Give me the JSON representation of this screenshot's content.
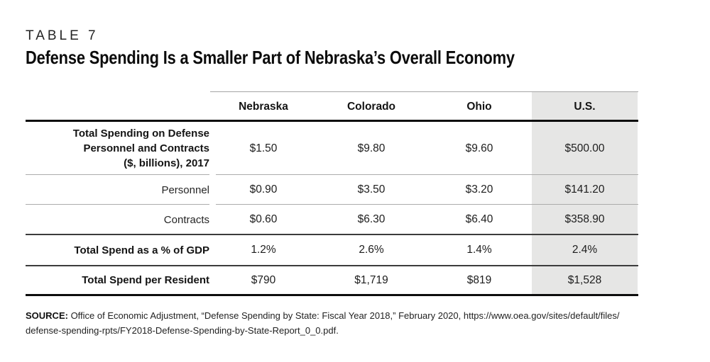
{
  "header": {
    "kicker": "TABLE 7",
    "title": "Defense Spending Is a Smaller Part of Nebraska’s Overall Economy"
  },
  "table": {
    "columns": [
      "Nebraska",
      "Colorado",
      "Ohio",
      "U.S."
    ],
    "highlighted_column": "U.S.",
    "highlight_color": "#e6e6e5",
    "rows": [
      {
        "label": "Total Spending on Defense Personnel and Contracts ($, billions), 2017",
        "label_lines": [
          "Total Spending on Defense",
          "Personnel and Contracts",
          "($, billions), 2017"
        ],
        "bold": true,
        "values": [
          "$1.50",
          "$9.80",
          "$9.60",
          "$500.00"
        ]
      },
      {
        "label": "Personnel",
        "bold": false,
        "values": [
          "$0.90",
          "$3.50",
          "$3.20",
          "$141.20"
        ]
      },
      {
        "label": "Contracts",
        "bold": false,
        "values": [
          "$0.60",
          "$6.30",
          "$6.40",
          "$358.90"
        ]
      },
      {
        "label": "Total Spend as a % of GDP",
        "bold": true,
        "values": [
          "1.2%",
          "2.6%",
          "1.4%",
          "2.4%"
        ]
      },
      {
        "label": "Total Spend per Resident",
        "bold": true,
        "values": [
          "$790",
          "$1,719",
          "$819",
          "$1,528"
        ]
      }
    ]
  },
  "source": {
    "prefix": "SOURCE:",
    "line1_rest": " Office of Economic Adjustment, “Defense Spending by State: Fiscal Year 2018,” February 2020, https://www.oea.gov/sites/default/files/",
    "line2": "defense-spending-rpts/FY2018-Defense-Spending-by-State-Report_0_0.pdf."
  },
  "chart_data": {
    "type": "table",
    "table_number": "TABLE 7",
    "title": "Defense Spending Is a Smaller Part of Nebraska’s Overall Economy",
    "columns": [
      "",
      "Nebraska",
      "Colorado",
      "Ohio",
      "U.S."
    ],
    "rows": [
      [
        "Total Spending on Defense Personnel and Contracts ($, billions), 2017",
        "$1.50",
        "$9.80",
        "$9.60",
        "$500.00"
      ],
      [
        "Personnel",
        "$0.90",
        "$3.50",
        "$3.20",
        "$141.20"
      ],
      [
        "Contracts",
        "$0.60",
        "$6.30",
        "$6.40",
        "$358.90"
      ],
      [
        "Total Spend as a % of GDP",
        "1.2%",
        "2.6%",
        "1.4%",
        "2.4%"
      ],
      [
        "Total Spend per Resident",
        "$790",
        "$1,719",
        "$819",
        "$1,528"
      ]
    ],
    "highlight_column": "U.S.",
    "layout": {
      "highlight_fill": "#e6e6e5",
      "grid": "horizontal-rules-only"
    },
    "source": "SOURCE: Office of Economic Adjustment, “Defense Spending by State: Fiscal Year 2018,” February 2020, https://www.oea.gov/sites/default/files/defense-spending-rpts/FY2018-Defense-Spending-by-State-Report_0_0.pdf."
  }
}
